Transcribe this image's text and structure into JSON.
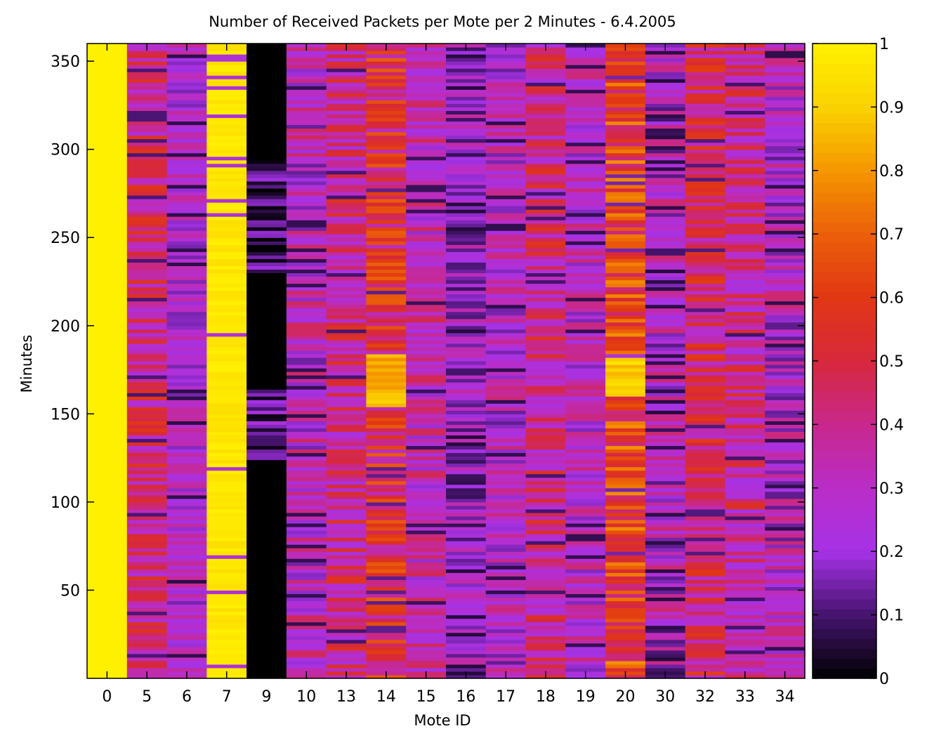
{
  "chart_data": {
    "type": "heatmap",
    "title": "Number of Received Packets per Mote per 2 Minutes - 6.4.2005",
    "xlabel": "Mote ID",
    "ylabel": "Minutes",
    "categories": [
      "0",
      "5",
      "6",
      "7",
      "9",
      "10",
      "13",
      "14",
      "15",
      "16",
      "17",
      "18",
      "19",
      "20",
      "30",
      "32",
      "33",
      "34"
    ],
    "ylim": [
      0,
      360
    ],
    "y_ticks": [
      50,
      100,
      150,
      200,
      250,
      300,
      350
    ],
    "colorbar": {
      "range": [
        0,
        1
      ],
      "ticks": [
        0,
        0.1,
        0.2,
        0.3,
        0.4,
        0.5,
        0.6,
        0.7,
        0.8,
        0.9,
        1
      ],
      "tick_labels": [
        "0",
        "0.1",
        "0.2",
        "0.3",
        "0.4",
        "0.5",
        "0.6",
        "0.7",
        "0.8",
        "0.9",
        "1"
      ],
      "colormap": "black-purple-red-orange-yellow"
    },
    "series": [
      {
        "mote": "0",
        "mean": 1.0,
        "variation": 0.0
      },
      {
        "mote": "5",
        "mean": 0.42,
        "variation": 0.18
      },
      {
        "mote": "6",
        "mean": 0.27,
        "variation": 0.12
      },
      {
        "mote": "7",
        "mean": 0.97,
        "variation": 0.03
      },
      {
        "mote": "9",
        "mean": 0.0,
        "variation": 0.15,
        "segments": [
          {
            "from": 0,
            "to": 125,
            "value": 0.0
          },
          {
            "from": 125,
            "to": 165,
            "value": 0.12,
            "variation": 0.12
          },
          {
            "from": 165,
            "to": 230,
            "value": 0.0
          },
          {
            "from": 230,
            "to": 295,
            "value": 0.08,
            "variation": 0.14
          },
          {
            "from": 295,
            "to": 360,
            "value": 0.0
          }
        ]
      },
      {
        "mote": "10",
        "mean": 0.3,
        "variation": 0.17
      },
      {
        "mote": "13",
        "mean": 0.4,
        "variation": 0.18
      },
      {
        "mote": "14",
        "mean": 0.5,
        "variation": 0.2,
        "segments": [
          {
            "from": 155,
            "to": 185,
            "value": 0.85,
            "variation": 0.08
          }
        ]
      },
      {
        "mote": "15",
        "mean": 0.33,
        "variation": 0.15
      },
      {
        "mote": "16",
        "mean": 0.22,
        "variation": 0.15
      },
      {
        "mote": "17",
        "mean": 0.28,
        "variation": 0.15
      },
      {
        "mote": "18",
        "mean": 0.4,
        "variation": 0.18
      },
      {
        "mote": "19",
        "mean": 0.3,
        "variation": 0.14
      },
      {
        "mote": "20",
        "mean": 0.6,
        "variation": 0.2,
        "segments": [
          {
            "from": 160,
            "to": 185,
            "value": 0.9,
            "variation": 0.06
          }
        ]
      },
      {
        "mote": "30",
        "mean": 0.25,
        "variation": 0.2
      },
      {
        "mote": "32",
        "mean": 0.45,
        "variation": 0.17
      },
      {
        "mote": "33",
        "mean": 0.38,
        "variation": 0.18
      },
      {
        "mote": "34",
        "mean": 0.28,
        "variation": 0.16
      }
    ]
  }
}
